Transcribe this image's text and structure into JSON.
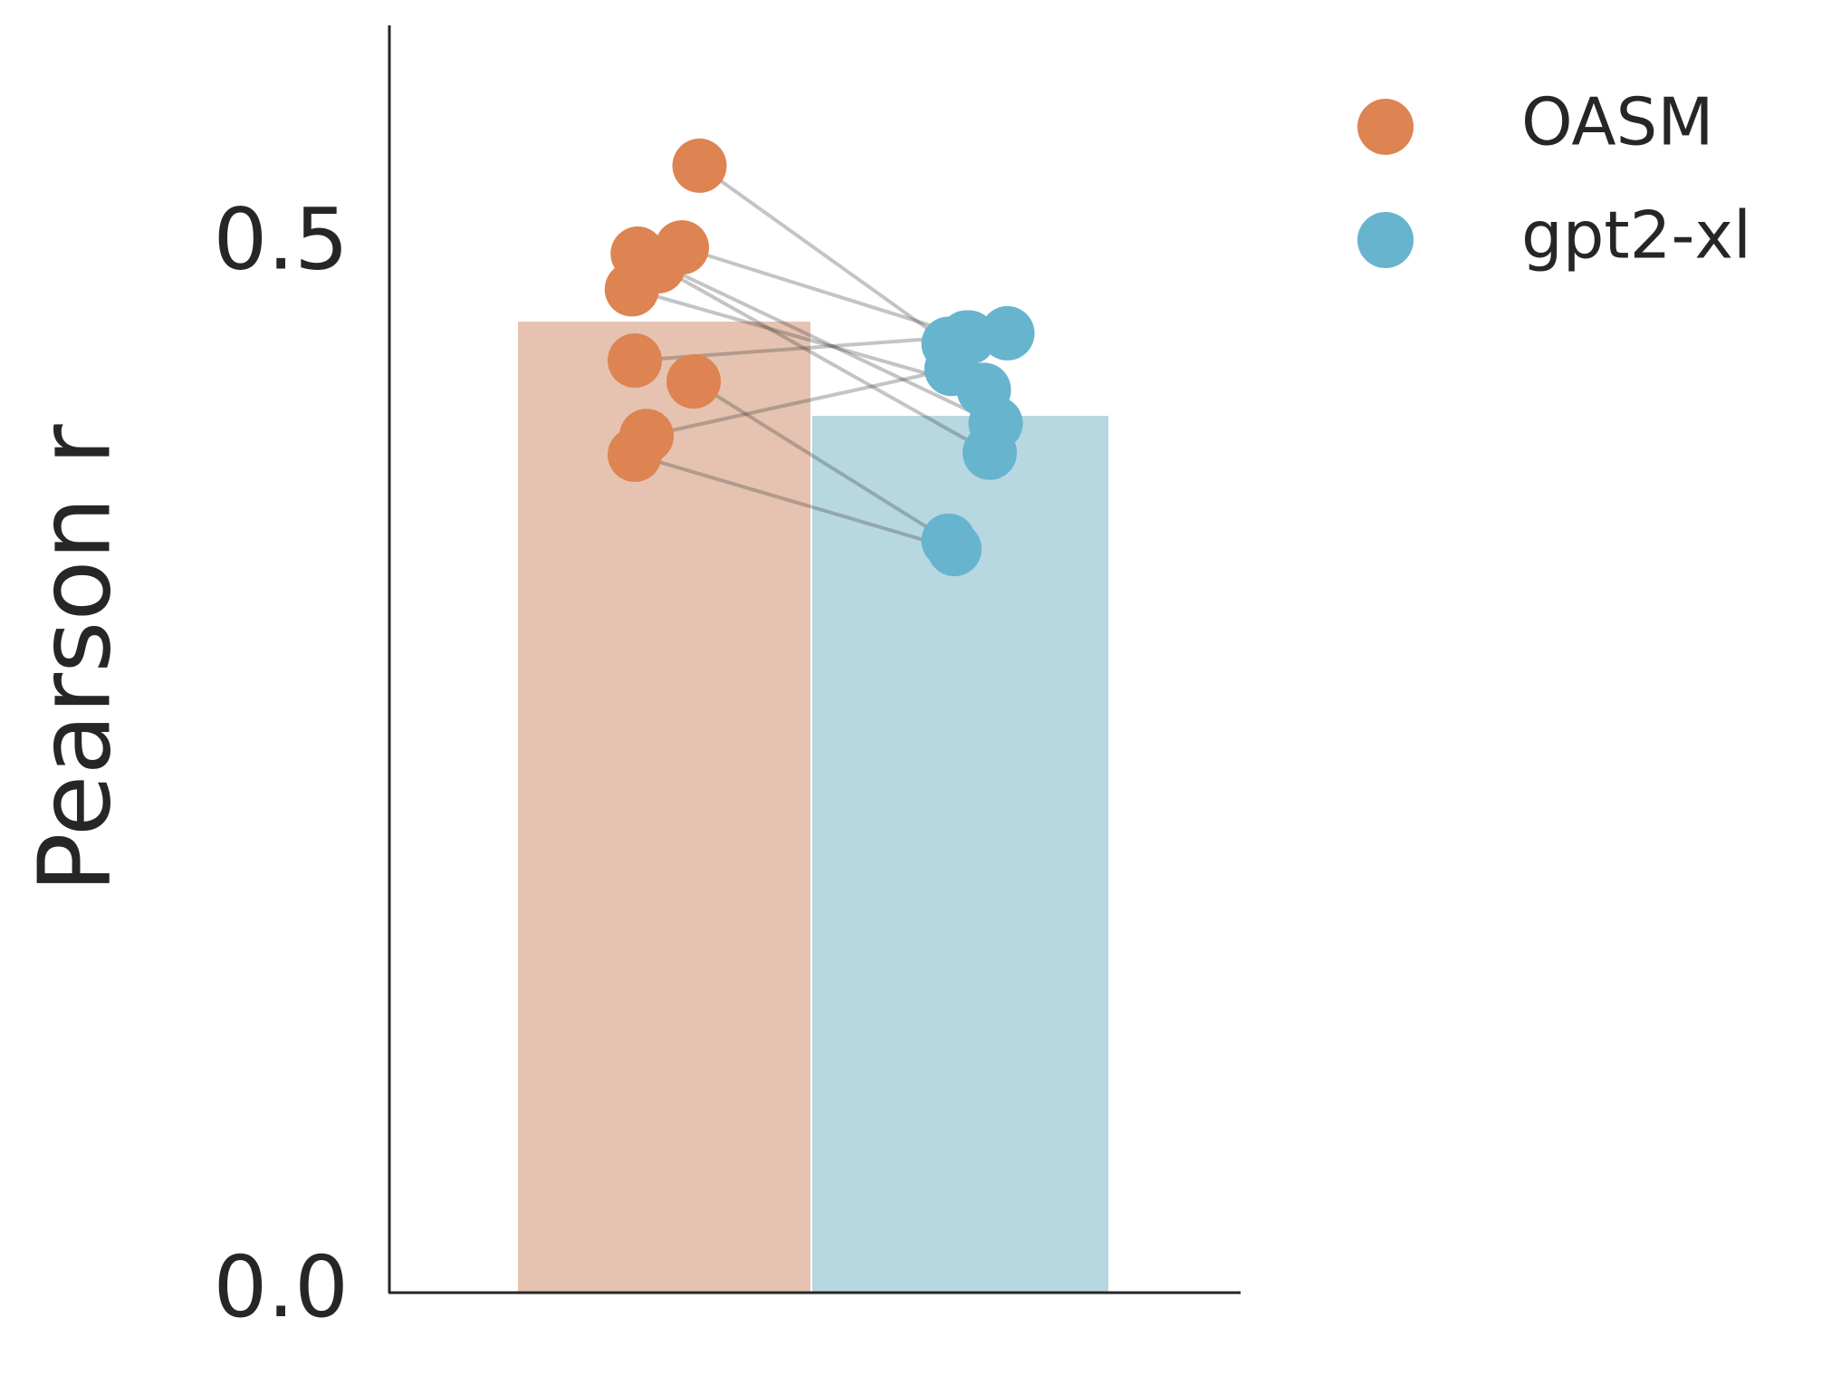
{
  "chart_data": {
    "type": "bar",
    "ylabel": "Pearson r",
    "xlabel": "",
    "ylim": [
      0.0,
      0.605
    ],
    "yticks": [
      {
        "value": 0.0,
        "label": "0.0"
      },
      {
        "value": 0.5,
        "label": "0.5"
      }
    ],
    "grid": false,
    "legend_position": "top-right",
    "series": [
      {
        "name": "OASM",
        "color": "#DD8452",
        "bar_color": "#E6C3B0",
        "mean": 0.464,
        "points": [
          {
            "value": 0.538,
            "jitter": 0.12
          },
          {
            "value": 0.499,
            "jitter": 0.06
          },
          {
            "value": 0.496,
            "jitter": -0.09
          },
          {
            "value": 0.49,
            "jitter": -0.02
          },
          {
            "value": 0.479,
            "jitter": -0.11
          },
          {
            "value": 0.445,
            "jitter": -0.1
          },
          {
            "value": 0.435,
            "jitter": 0.1
          },
          {
            "value": 0.409,
            "jitter": -0.06
          },
          {
            "value": 0.4,
            "jitter": -0.1
          }
        ]
      },
      {
        "name": "gpt2-xl",
        "color": "#67B4CF",
        "bar_color": "#B7D7E1",
        "mean": 0.419,
        "points": [
          {
            "value": 0.456,
            "jitter": 0.03
          },
          {
            "value": 0.458,
            "jitter": 0.16
          },
          {
            "value": 0.456,
            "jitter": 0.02
          },
          {
            "value": 0.453,
            "jitter": -0.04
          },
          {
            "value": 0.441,
            "jitter": -0.03
          },
          {
            "value": 0.431,
            "jitter": 0.08
          },
          {
            "value": 0.415,
            "jitter": 0.12
          },
          {
            "value": 0.401,
            "jitter": 0.1
          },
          {
            "value": 0.359,
            "jitter": -0.04
          },
          {
            "value": 0.355,
            "jitter": -0.02
          }
        ]
      }
    ],
    "pairs": [
      [
        0,
        3
      ],
      [
        1,
        0
      ],
      [
        2,
        6
      ],
      [
        3,
        7
      ],
      [
        4,
        5
      ],
      [
        5,
        1
      ],
      [
        6,
        8
      ],
      [
        7,
        4
      ],
      [
        8,
        9
      ]
    ]
  }
}
